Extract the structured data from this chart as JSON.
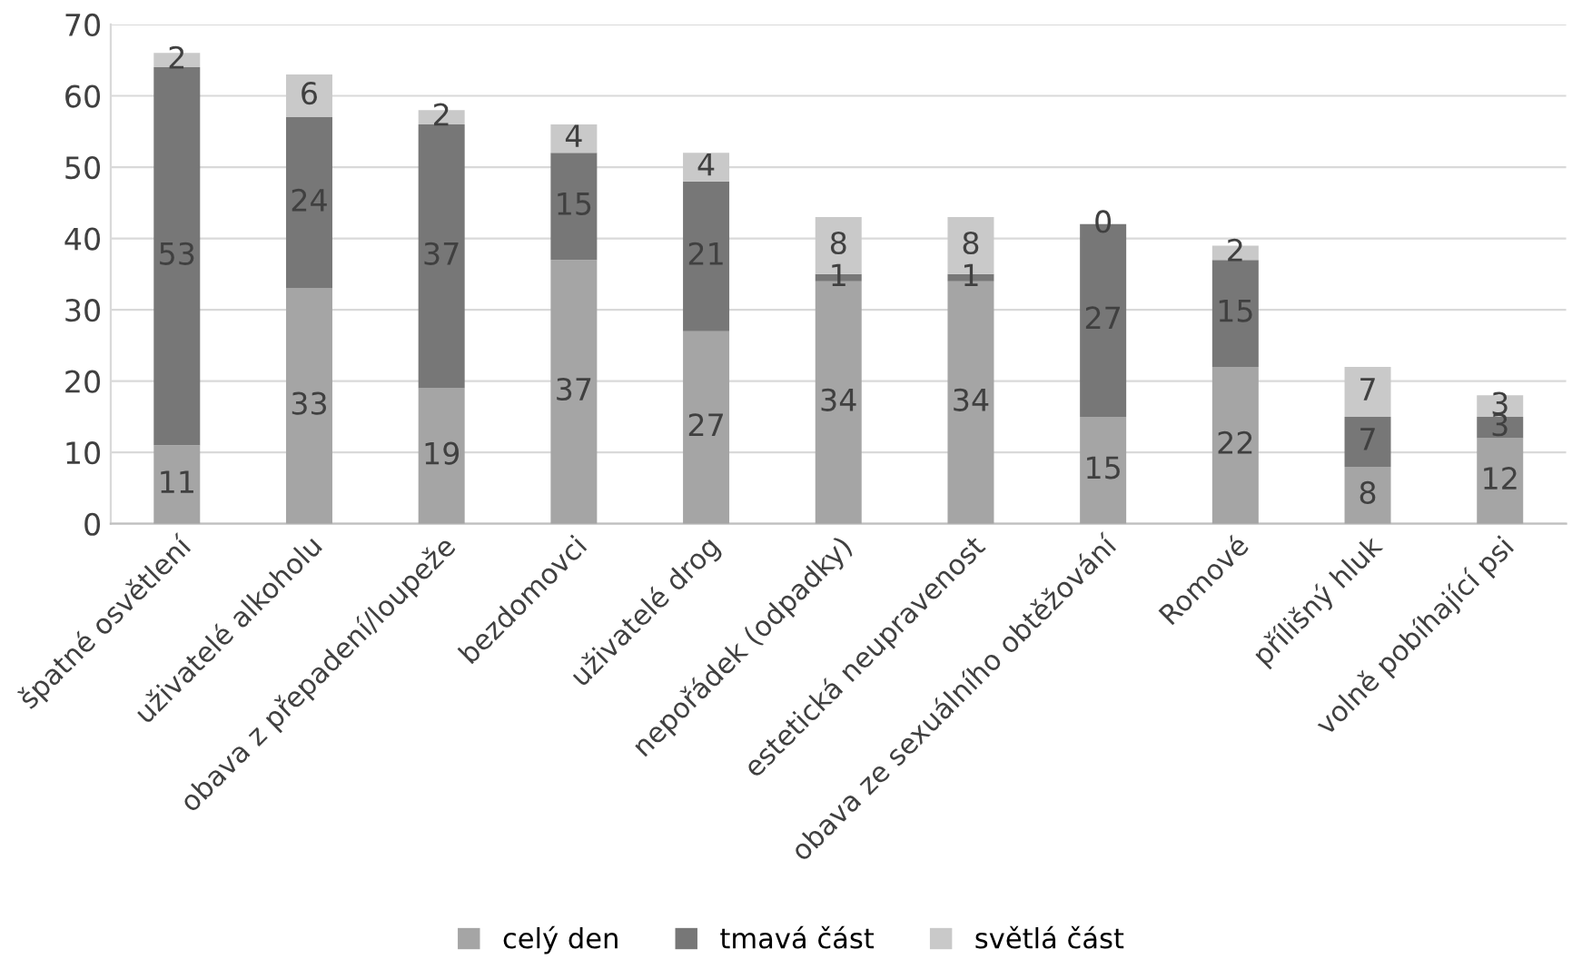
{
  "chart_data": {
    "type": "bar",
    "stacked": true,
    "data_labels": true,
    "grid": "y",
    "legend": "bottom",
    "categories": [
      "špatné osvětlení",
      "uživatelé alkoholu",
      "obava z přepadení/loupeže",
      "bezdomovci",
      "uživatelé drog",
      "nepořádek (odpadky)",
      "estetická neupravenost",
      "obava ze sexuálního obtěžování",
      "Romové",
      "přílišný hluk",
      "volně pobíhající psi"
    ],
    "series": [
      {
        "name": "celý den",
        "color": "#a5a5a5",
        "values": [
          11,
          33,
          19,
          37,
          27,
          34,
          34,
          15,
          22,
          8,
          12
        ]
      },
      {
        "name": "tmavá část",
        "color": "#777777",
        "values": [
          53,
          24,
          37,
          15,
          21,
          1,
          1,
          27,
          15,
          7,
          3
        ]
      },
      {
        "name": "světlá část",
        "color": "#c9c9c9",
        "values": [
          2,
          6,
          2,
          4,
          4,
          8,
          8,
          0,
          2,
          7,
          3
        ]
      }
    ],
    "ylim": [
      0,
      70
    ],
    "yticks": [
      0,
      10,
      20,
      30,
      40,
      50,
      60,
      70
    ]
  }
}
